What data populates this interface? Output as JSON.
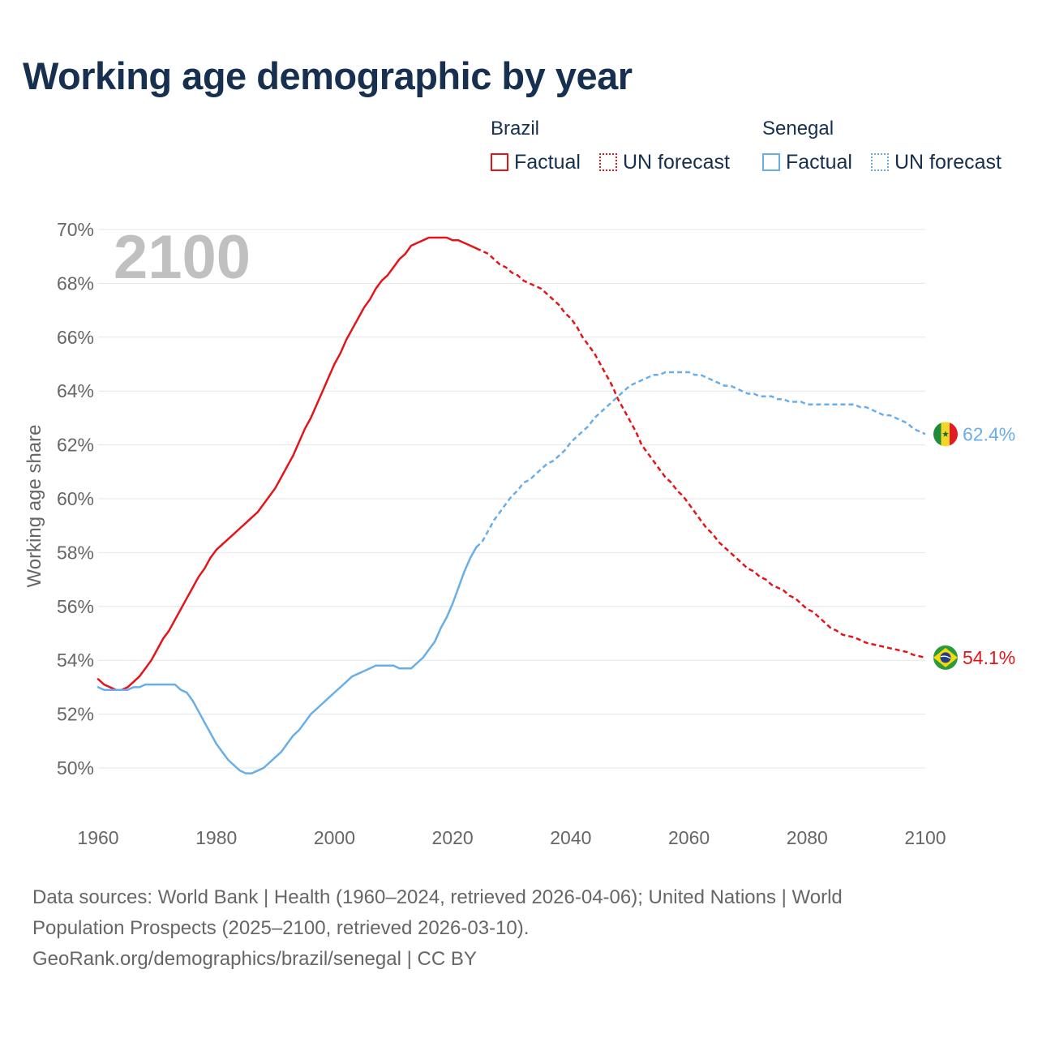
{
  "title": "Working age demographic by year",
  "legend": {
    "groups": [
      {
        "name": "Brazil",
        "factual_label": "Factual",
        "forecast_label": "UN forecast"
      },
      {
        "name": "Senegal",
        "factual_label": "Factual",
        "forecast_label": "UN forecast"
      }
    ]
  },
  "footer": {
    "line1": "Data sources: World Bank | Health (1960–2024, retrieved 2026-04-06); United Nations | World",
    "line2": "Population Prospects (2025–2100, retrieved 2026-03-10).",
    "line3": "GeoRank.org/demographics/brazil/senegal | CC BY"
  },
  "colors": {
    "brazil": "#e3151a",
    "senegal": "#6aaee8",
    "title": "#17304f",
    "axis_text": "#666666",
    "grid": "#e6e6e6",
    "year_watermark": "#c0c0c0"
  },
  "chart_data": {
    "type": "line",
    "title": "Working age demographic by year",
    "xlabel": "",
    "ylabel": "Working age share",
    "year_label": "2100",
    "xlim": [
      1960,
      2100
    ],
    "ylim": [
      49,
      70
    ],
    "x_ticks": [
      1960,
      1980,
      2000,
      2020,
      2040,
      2060,
      2080,
      2100
    ],
    "y_ticks": [
      50,
      52,
      54,
      56,
      58,
      60,
      62,
      64,
      66,
      68,
      70
    ],
    "y_tick_labels": [
      "50%",
      "52%",
      "54%",
      "56%",
      "58%",
      "60%",
      "62%",
      "64%",
      "66%",
      "68%",
      "70%"
    ],
    "factual_range": [
      1960,
      2024
    ],
    "forecast_range": [
      2025,
      2100
    ],
    "series": [
      {
        "name": "Brazil",
        "end_label": "54.1%",
        "flag": "brazil-flag",
        "points": [
          [
            1960,
            53.3
          ],
          [
            1961,
            53.1
          ],
          [
            1962,
            53.0
          ],
          [
            1963,
            52.9
          ],
          [
            1964,
            52.9
          ],
          [
            1965,
            53.0
          ],
          [
            1966,
            53.2
          ],
          [
            1967,
            53.4
          ],
          [
            1968,
            53.7
          ],
          [
            1969,
            54.0
          ],
          [
            1970,
            54.4
          ],
          [
            1971,
            54.8
          ],
          [
            1972,
            55.1
          ],
          [
            1973,
            55.5
          ],
          [
            1974,
            55.9
          ],
          [
            1975,
            56.3
          ],
          [
            1976,
            56.7
          ],
          [
            1977,
            57.1
          ],
          [
            1978,
            57.4
          ],
          [
            1979,
            57.8
          ],
          [
            1980,
            58.1
          ],
          [
            1981,
            58.3
          ],
          [
            1982,
            58.5
          ],
          [
            1983,
            58.7
          ],
          [
            1984,
            58.9
          ],
          [
            1985,
            59.1
          ],
          [
            1986,
            59.3
          ],
          [
            1987,
            59.5
          ],
          [
            1988,
            59.8
          ],
          [
            1989,
            60.1
          ],
          [
            1990,
            60.4
          ],
          [
            1991,
            60.8
          ],
          [
            1992,
            61.2
          ],
          [
            1993,
            61.6
          ],
          [
            1994,
            62.1
          ],
          [
            1995,
            62.6
          ],
          [
            1996,
            63.0
          ],
          [
            1997,
            63.5
          ],
          [
            1998,
            64.0
          ],
          [
            1999,
            64.5
          ],
          [
            2000,
            65.0
          ],
          [
            2001,
            65.4
          ],
          [
            2002,
            65.9
          ],
          [
            2003,
            66.3
          ],
          [
            2004,
            66.7
          ],
          [
            2005,
            67.1
          ],
          [
            2006,
            67.4
          ],
          [
            2007,
            67.8
          ],
          [
            2008,
            68.1
          ],
          [
            2009,
            68.3
          ],
          [
            2010,
            68.6
          ],
          [
            2011,
            68.9
          ],
          [
            2012,
            69.1
          ],
          [
            2013,
            69.4
          ],
          [
            2014,
            69.5
          ],
          [
            2015,
            69.6
          ],
          [
            2016,
            69.7
          ],
          [
            2017,
            69.7
          ],
          [
            2018,
            69.7
          ],
          [
            2019,
            69.7
          ],
          [
            2020,
            69.6
          ],
          [
            2021,
            69.6
          ],
          [
            2022,
            69.5
          ],
          [
            2023,
            69.4
          ],
          [
            2024,
            69.3
          ],
          [
            2025,
            69.2
          ],
          [
            2026,
            69.1
          ],
          [
            2027,
            68.9
          ],
          [
            2028,
            68.7
          ],
          [
            2029,
            68.6
          ],
          [
            2030,
            68.4
          ],
          [
            2031,
            68.3
          ],
          [
            2032,
            68.1
          ],
          [
            2033,
            68.0
          ],
          [
            2034,
            67.9
          ],
          [
            2035,
            67.8
          ],
          [
            2036,
            67.6
          ],
          [
            2037,
            67.4
          ],
          [
            2038,
            67.2
          ],
          [
            2039,
            66.9
          ],
          [
            2040,
            66.7
          ],
          [
            2041,
            66.4
          ],
          [
            2042,
            66.0
          ],
          [
            2043,
            65.7
          ],
          [
            2044,
            65.4
          ],
          [
            2045,
            65.0
          ],
          [
            2046,
            64.6
          ],
          [
            2047,
            64.2
          ],
          [
            2048,
            63.7
          ],
          [
            2049,
            63.3
          ],
          [
            2050,
            62.9
          ],
          [
            2051,
            62.5
          ],
          [
            2052,
            62.0
          ],
          [
            2053,
            61.7
          ],
          [
            2054,
            61.4
          ],
          [
            2055,
            61.1
          ],
          [
            2056,
            60.8
          ],
          [
            2057,
            60.6
          ],
          [
            2058,
            60.3
          ],
          [
            2059,
            60.1
          ],
          [
            2060,
            59.8
          ],
          [
            2061,
            59.5
          ],
          [
            2062,
            59.2
          ],
          [
            2063,
            58.9
          ],
          [
            2064,
            58.7
          ],
          [
            2065,
            58.4
          ],
          [
            2066,
            58.2
          ],
          [
            2067,
            58.0
          ],
          [
            2068,
            57.8
          ],
          [
            2069,
            57.6
          ],
          [
            2070,
            57.4
          ],
          [
            2071,
            57.3
          ],
          [
            2072,
            57.1
          ],
          [
            2073,
            57.0
          ],
          [
            2074,
            56.8
          ],
          [
            2075,
            56.7
          ],
          [
            2076,
            56.6
          ],
          [
            2077,
            56.4
          ],
          [
            2078,
            56.3
          ],
          [
            2079,
            56.1
          ],
          [
            2080,
            55.9
          ],
          [
            2081,
            55.8
          ],
          [
            2082,
            55.6
          ],
          [
            2083,
            55.4
          ],
          [
            2084,
            55.2
          ],
          [
            2085,
            55.1
          ],
          [
            2086,
            54.95
          ],
          [
            2087,
            54.9
          ],
          [
            2088,
            54.85
          ],
          [
            2089,
            54.75
          ],
          [
            2090,
            54.65
          ],
          [
            2091,
            54.6
          ],
          [
            2092,
            54.55
          ],
          [
            2093,
            54.5
          ],
          [
            2094,
            54.45
          ],
          [
            2095,
            54.4
          ],
          [
            2096,
            54.35
          ],
          [
            2097,
            54.3
          ],
          [
            2098,
            54.2
          ],
          [
            2099,
            54.15
          ],
          [
            2100,
            54.1
          ]
        ]
      },
      {
        "name": "Senegal",
        "end_label": "62.4%",
        "flag": "senegal-flag",
        "points": [
          [
            1960,
            53.0
          ],
          [
            1961,
            52.9
          ],
          [
            1962,
            52.9
          ],
          [
            1963,
            52.9
          ],
          [
            1964,
            52.9
          ],
          [
            1965,
            52.9
          ],
          [
            1966,
            53.0
          ],
          [
            1967,
            53.0
          ],
          [
            1968,
            53.1
          ],
          [
            1969,
            53.1
          ],
          [
            1970,
            53.1
          ],
          [
            1971,
            53.1
          ],
          [
            1972,
            53.1
          ],
          [
            1973,
            53.1
          ],
          [
            1974,
            52.9
          ],
          [
            1975,
            52.8
          ],
          [
            1976,
            52.5
          ],
          [
            1977,
            52.1
          ],
          [
            1978,
            51.7
          ],
          [
            1979,
            51.3
          ],
          [
            1980,
            50.9
          ],
          [
            1981,
            50.6
          ],
          [
            1982,
            50.3
          ],
          [
            1983,
            50.1
          ],
          [
            1984,
            49.9
          ],
          [
            1985,
            49.8
          ],
          [
            1986,
            49.8
          ],
          [
            1987,
            49.9
          ],
          [
            1988,
            50.0
          ],
          [
            1989,
            50.2
          ],
          [
            1990,
            50.4
          ],
          [
            1991,
            50.6
          ],
          [
            1992,
            50.9
          ],
          [
            1993,
            51.2
          ],
          [
            1994,
            51.4
          ],
          [
            1995,
            51.7
          ],
          [
            1996,
            52.0
          ],
          [
            1997,
            52.2
          ],
          [
            1998,
            52.4
          ],
          [
            1999,
            52.6
          ],
          [
            2000,
            52.8
          ],
          [
            2001,
            53.0
          ],
          [
            2002,
            53.2
          ],
          [
            2003,
            53.4
          ],
          [
            2004,
            53.5
          ],
          [
            2005,
            53.6
          ],
          [
            2006,
            53.7
          ],
          [
            2007,
            53.8
          ],
          [
            2008,
            53.8
          ],
          [
            2009,
            53.8
          ],
          [
            2010,
            53.8
          ],
          [
            2011,
            53.7
          ],
          [
            2012,
            53.7
          ],
          [
            2013,
            53.7
          ],
          [
            2014,
            53.9
          ],
          [
            2015,
            54.1
          ],
          [
            2016,
            54.4
          ],
          [
            2017,
            54.7
          ],
          [
            2018,
            55.2
          ],
          [
            2019,
            55.6
          ],
          [
            2020,
            56.1
          ],
          [
            2021,
            56.7
          ],
          [
            2022,
            57.3
          ],
          [
            2023,
            57.8
          ],
          [
            2024,
            58.2
          ],
          [
            2025,
            58.4
          ],
          [
            2026,
            58.8
          ],
          [
            2027,
            59.2
          ],
          [
            2028,
            59.5
          ],
          [
            2029,
            59.8
          ],
          [
            2030,
            60.1
          ],
          [
            2031,
            60.3
          ],
          [
            2032,
            60.6
          ],
          [
            2033,
            60.7
          ],
          [
            2034,
            60.9
          ],
          [
            2035,
            61.1
          ],
          [
            2036,
            61.3
          ],
          [
            2037,
            61.4
          ],
          [
            2038,
            61.6
          ],
          [
            2039,
            61.8
          ],
          [
            2040,
            62.1
          ],
          [
            2041,
            62.3
          ],
          [
            2042,
            62.5
          ],
          [
            2043,
            62.7
          ],
          [
            2044,
            63.0
          ],
          [
            2045,
            63.2
          ],
          [
            2046,
            63.4
          ],
          [
            2047,
            63.6
          ],
          [
            2048,
            63.8
          ],
          [
            2049,
            64.0
          ],
          [
            2050,
            64.2
          ],
          [
            2051,
            64.3
          ],
          [
            2052,
            64.4
          ],
          [
            2053,
            64.5
          ],
          [
            2054,
            64.6
          ],
          [
            2055,
            64.6
          ],
          [
            2056,
            64.7
          ],
          [
            2057,
            64.7
          ],
          [
            2058,
            64.7
          ],
          [
            2059,
            64.7
          ],
          [
            2060,
            64.7
          ],
          [
            2061,
            64.6
          ],
          [
            2062,
            64.6
          ],
          [
            2063,
            64.5
          ],
          [
            2064,
            64.4
          ],
          [
            2065,
            64.3
          ],
          [
            2066,
            64.2
          ],
          [
            2067,
            64.2
          ],
          [
            2068,
            64.1
          ],
          [
            2069,
            64.0
          ],
          [
            2070,
            63.9
          ],
          [
            2071,
            63.9
          ],
          [
            2072,
            63.8
          ],
          [
            2073,
            63.8
          ],
          [
            2074,
            63.8
          ],
          [
            2075,
            63.7
          ],
          [
            2076,
            63.7
          ],
          [
            2077,
            63.6
          ],
          [
            2078,
            63.6
          ],
          [
            2079,
            63.6
          ],
          [
            2080,
            63.5
          ],
          [
            2081,
            63.5
          ],
          [
            2082,
            63.5
          ],
          [
            2083,
            63.5
          ],
          [
            2084,
            63.5
          ],
          [
            2085,
            63.5
          ],
          [
            2086,
            63.5
          ],
          [
            2087,
            63.5
          ],
          [
            2088,
            63.5
          ],
          [
            2089,
            63.4
          ],
          [
            2090,
            63.4
          ],
          [
            2091,
            63.3
          ],
          [
            2092,
            63.2
          ],
          [
            2093,
            63.1
          ],
          [
            2094,
            63.1
          ],
          [
            2095,
            63.0
          ],
          [
            2096,
            62.9
          ],
          [
            2097,
            62.8
          ],
          [
            2098,
            62.6
          ],
          [
            2099,
            62.5
          ],
          [
            2100,
            62.4
          ]
        ]
      }
    ]
  }
}
